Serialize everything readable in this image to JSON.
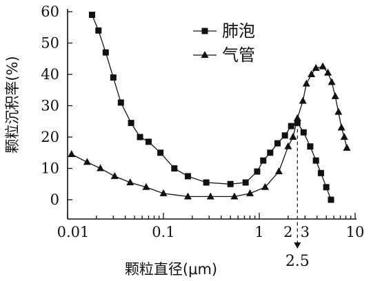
{
  "chart_data": {
    "type": "line",
    "x_scale": "log",
    "grid": false,
    "legend_position": "top-center",
    "xlabel": "颗粒直径(μm)",
    "ylabel": "颗粒沉积率(%)",
    "xlim": [
      0.01,
      10
    ],
    "ylim": [
      0,
      60
    ],
    "x_ticks": [
      {
        "value": 0.01,
        "label": "0.01"
      },
      {
        "value": 0.1,
        "label": "0.1"
      },
      {
        "value": 1,
        "label": "1"
      },
      {
        "value": 2,
        "label": "2"
      },
      {
        "value": 3,
        "label": "3"
      },
      {
        "value": 10,
        "label": "10"
      }
    ],
    "y_ticks": [
      {
        "value": 0,
        "label": "0"
      },
      {
        "value": 10,
        "label": "10"
      },
      {
        "value": 20,
        "label": "20"
      },
      {
        "value": 30,
        "label": "30"
      },
      {
        "value": 40,
        "label": "40"
      },
      {
        "value": 50,
        "label": "50"
      },
      {
        "value": 60,
        "label": "60"
      }
    ],
    "series": [
      {
        "name": "肺泡",
        "marker": "square",
        "points": [
          [
            0.018,
            59
          ],
          [
            0.021,
            54
          ],
          [
            0.025,
            47
          ],
          [
            0.03,
            39
          ],
          [
            0.036,
            31
          ],
          [
            0.046,
            24.5
          ],
          [
            0.057,
            20
          ],
          [
            0.07,
            18.5
          ],
          [
            0.093,
            15
          ],
          [
            0.13,
            10
          ],
          [
            0.18,
            7.5
          ],
          [
            0.28,
            5.5
          ],
          [
            0.5,
            5
          ],
          [
            0.72,
            5.5
          ],
          [
            0.95,
            9
          ],
          [
            1.1,
            12.5
          ],
          [
            1.3,
            15
          ],
          [
            1.55,
            18
          ],
          [
            1.85,
            20.5
          ],
          [
            2.15,
            23.5
          ],
          [
            2.5,
            24.5
          ],
          [
            2.9,
            21.5
          ],
          [
            3.4,
            17
          ],
          [
            3.9,
            12.5
          ],
          [
            4.4,
            8.5
          ],
          [
            5.0,
            4
          ],
          [
            5.6,
            0
          ]
        ]
      },
      {
        "name": "气管",
        "marker": "triangle",
        "points": [
          [
            0.011,
            14.5
          ],
          [
            0.016,
            12
          ],
          [
            0.022,
            10
          ],
          [
            0.031,
            7.5
          ],
          [
            0.045,
            5.5
          ],
          [
            0.066,
            4
          ],
          [
            0.1,
            2
          ],
          [
            0.18,
            1
          ],
          [
            0.31,
            1
          ],
          [
            0.55,
            1
          ],
          [
            0.8,
            2
          ],
          [
            1.15,
            4
          ],
          [
            1.6,
            9
          ],
          [
            2.0,
            17
          ],
          [
            2.25,
            20
          ],
          [
            2.5,
            26
          ],
          [
            2.85,
            31.5
          ],
          [
            3.1,
            37
          ],
          [
            3.5,
            40
          ],
          [
            3.9,
            42
          ],
          [
            4.6,
            42.5
          ],
          [
            5.2,
            40.5
          ],
          [
            5.7,
            37.5
          ],
          [
            6.2,
            33
          ],
          [
            6.7,
            28
          ],
          [
            7.2,
            23
          ],
          [
            7.7,
            20
          ],
          [
            8.2,
            16.5
          ]
        ]
      }
    ],
    "annotation": {
      "x": 2.5,
      "label": "2.5"
    }
  }
}
